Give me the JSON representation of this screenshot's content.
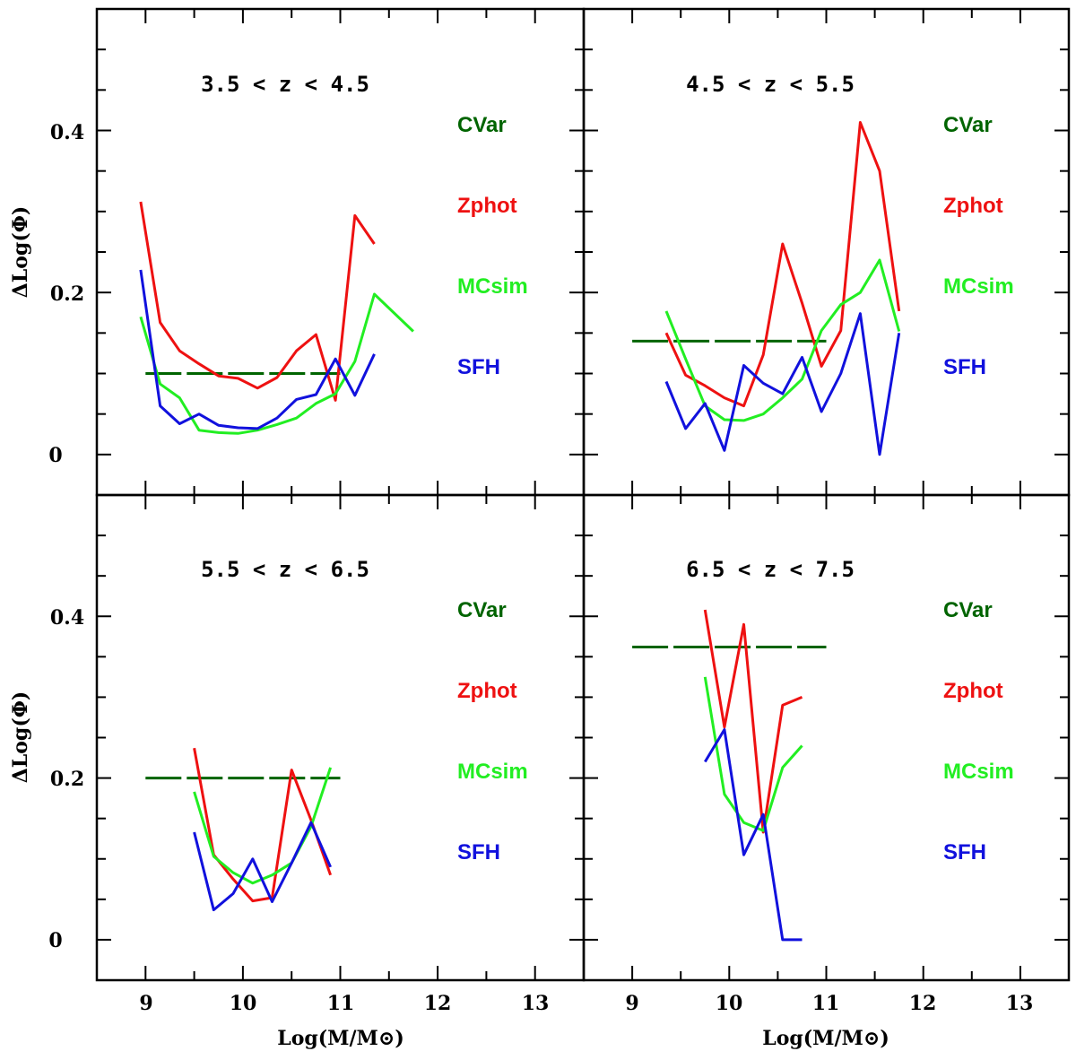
{
  "colors": {
    "CVar": "#006400",
    "Zphot": "#ee1111",
    "MCsim": "#22ee22",
    "SFH": "#1111dd"
  },
  "chart_data": {
    "type": "line",
    "xlabel": "Log(M/M⊙)",
    "ylabel": "ΔLog(Φ)",
    "xlim": [
      8.5,
      13.5
    ],
    "ylim": [
      -0.05,
      0.55
    ],
    "x_ticks": [
      "9",
      "10",
      "11",
      "12",
      "13"
    ],
    "y_ticks": [
      "0",
      "0.2",
      "0.4"
    ],
    "legend": [
      "CVar",
      "Zphot",
      "MCsim",
      "SFH"
    ],
    "panels": [
      {
        "title": "3.5 < z < 4.5",
        "series": [
          {
            "name": "CVar",
            "dashed": true,
            "x": [
              9.0,
              11.0
            ],
            "y": [
              0.1,
              0.1
            ]
          },
          {
            "name": "Zphot",
            "x": [
              8.95,
              9.15,
              9.35,
              9.55,
              9.75,
              9.95,
              10.15,
              10.35,
              10.55,
              10.75,
              10.95,
              11.15,
              11.35
            ],
            "y": [
              0.312,
              0.163,
              0.128,
              0.112,
              0.097,
              0.094,
              0.082,
              0.095,
              0.128,
              0.148,
              0.067,
              0.295,
              0.26
            ]
          },
          {
            "name": "MCsim",
            "x": [
              8.95,
              9.15,
              9.35,
              9.55,
              9.75,
              9.95,
              10.15,
              10.35,
              10.55,
              10.75,
              10.95,
              11.15,
              11.35,
              11.75
            ],
            "y": [
              0.17,
              0.087,
              0.07,
              0.03,
              0.027,
              0.026,
              0.03,
              0.037,
              0.045,
              0.063,
              0.075,
              0.115,
              0.198,
              0.152
            ]
          },
          {
            "name": "SFH",
            "x": [
              8.95,
              9.15,
              9.35,
              9.55,
              9.75,
              9.95,
              10.15,
              10.35,
              10.55,
              10.75,
              10.95,
              11.15,
              11.35
            ],
            "y": [
              0.228,
              0.06,
              0.038,
              0.05,
              0.036,
              0.033,
              0.032,
              0.045,
              0.068,
              0.074,
              0.118,
              0.073,
              0.124
            ]
          }
        ]
      },
      {
        "title": "4.5 < z < 5.5",
        "series": [
          {
            "name": "CVar",
            "dashed": true,
            "x": [
              9.0,
              11.0
            ],
            "y": [
              0.14,
              0.14
            ]
          },
          {
            "name": "Zphot",
            "x": [
              9.35,
              9.55,
              9.75,
              9.95,
              10.15,
              10.35,
              10.55,
              10.75,
              10.95,
              11.15,
              11.35,
              11.55,
              11.75
            ],
            "y": [
              0.15,
              0.098,
              0.085,
              0.07,
              0.06,
              0.123,
              0.26,
              0.187,
              0.109,
              0.153,
              0.41,
              0.35,
              0.177
            ]
          },
          {
            "name": "MCsim",
            "x": [
              9.35,
              9.55,
              9.75,
              9.95,
              10.15,
              10.35,
              10.55,
              10.75,
              10.95,
              11.15,
              11.35,
              11.55,
              11.75
            ],
            "y": [
              0.177,
              0.118,
              0.06,
              0.043,
              0.042,
              0.05,
              0.07,
              0.093,
              0.153,
              0.185,
              0.2,
              0.24,
              0.152
            ]
          },
          {
            "name": "SFH",
            "x": [
              9.35,
              9.55,
              9.75,
              9.95,
              10.15,
              10.35,
              10.55,
              10.75,
              10.95,
              11.15,
              11.35,
              11.55,
              11.75
            ],
            "y": [
              0.09,
              0.032,
              0.063,
              0.005,
              0.11,
              0.088,
              0.075,
              0.12,
              0.053,
              0.1,
              0.174,
              0.0,
              0.15
            ]
          }
        ]
      },
      {
        "title": "5.5 < z < 6.5",
        "series": [
          {
            "name": "CVar",
            "dashed": true,
            "x": [
              9.0,
              11.0
            ],
            "y": [
              0.2,
              0.2
            ]
          },
          {
            "name": "Zphot",
            "x": [
              9.5,
              9.7,
              9.9,
              10.1,
              10.3,
              10.5,
              10.7,
              10.9
            ],
            "y": [
              0.237,
              0.105,
              0.075,
              0.048,
              0.052,
              0.21,
              0.148,
              0.08
            ]
          },
          {
            "name": "MCsim",
            "x": [
              9.5,
              9.7,
              9.9,
              10.1,
              10.3,
              10.5,
              10.7,
              10.9
            ],
            "y": [
              0.183,
              0.103,
              0.083,
              0.07,
              0.08,
              0.095,
              0.14,
              0.213
            ]
          },
          {
            "name": "SFH",
            "x": [
              9.5,
              9.7,
              9.9,
              10.1,
              10.3,
              10.5,
              10.7,
              10.9
            ],
            "y": [
              0.133,
              0.037,
              0.057,
              0.1,
              0.047,
              0.095,
              0.145,
              0.09
            ]
          }
        ]
      },
      {
        "title": "6.5 < z < 7.5",
        "series": [
          {
            "name": "CVar",
            "dashed": true,
            "x": [
              9.0,
              11.0
            ],
            "y": [
              0.362,
              0.362
            ]
          },
          {
            "name": "Zphot",
            "x": [
              9.75,
              9.95,
              10.15,
              10.35,
              10.55,
              10.75
            ],
            "y": [
              0.408,
              0.263,
              0.39,
              0.133,
              0.29,
              0.3
            ]
          },
          {
            "name": "MCsim",
            "x": [
              9.75,
              9.95,
              10.15,
              10.35,
              10.55,
              10.75
            ],
            "y": [
              0.325,
              0.18,
              0.145,
              0.135,
              0.213,
              0.24
            ]
          },
          {
            "name": "SFH",
            "x": [
              9.75,
              9.95,
              10.15,
              10.35,
              10.55,
              10.75
            ],
            "y": [
              0.22,
              0.26,
              0.105,
              0.155,
              0.0,
              0.0
            ]
          }
        ]
      }
    ]
  }
}
